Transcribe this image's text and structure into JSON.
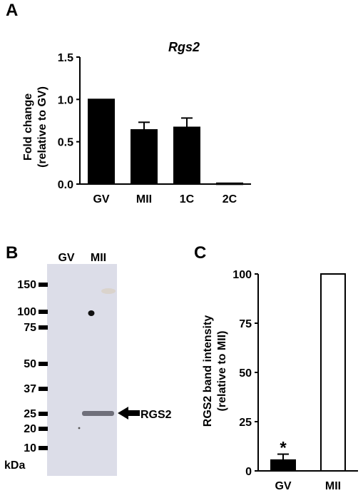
{
  "panels": {
    "a": "A",
    "b": "B",
    "c": "C"
  },
  "chart_data": [
    {
      "type": "bar",
      "title": "Rgs2",
      "ylabel_line1": "Fold change",
      "ylabel_line2": "(relative to GV)",
      "xlabel": "",
      "categories": [
        "GV",
        "MII",
        "1C",
        "2C"
      ],
      "values": [
        1.0,
        0.64,
        0.67,
        0.01
      ],
      "errors": [
        0.0,
        0.09,
        0.11,
        0.0
      ],
      "ylim": [
        0,
        1.5
      ],
      "yticks": [
        "0.0",
        "0.5",
        "1.0",
        "1.5"
      ],
      "bar_fill": "#000000"
    },
    {
      "type": "bar",
      "title": "",
      "ylabel_line1": "RGS2 band intensity",
      "ylabel_line2": "(relative to MII)",
      "xlabel": "",
      "categories": [
        "GV",
        "MII"
      ],
      "values": [
        5.5,
        100
      ],
      "errors": [
        3.0,
        0
      ],
      "annotations": [
        "*",
        ""
      ],
      "bar_fills": [
        "#000000",
        "#ffffff"
      ],
      "ylim": [
        0,
        100
      ],
      "yticks": [
        "0",
        "25",
        "50",
        "75",
        "100"
      ]
    }
  ],
  "blot": {
    "lanes": [
      "GV",
      "MII"
    ],
    "markers": [
      "150",
      "100",
      "75",
      "50",
      "37",
      "25",
      "20",
      "10"
    ],
    "unit": "kDa",
    "band_label": "RGS2",
    "background": "#dcdde8"
  }
}
